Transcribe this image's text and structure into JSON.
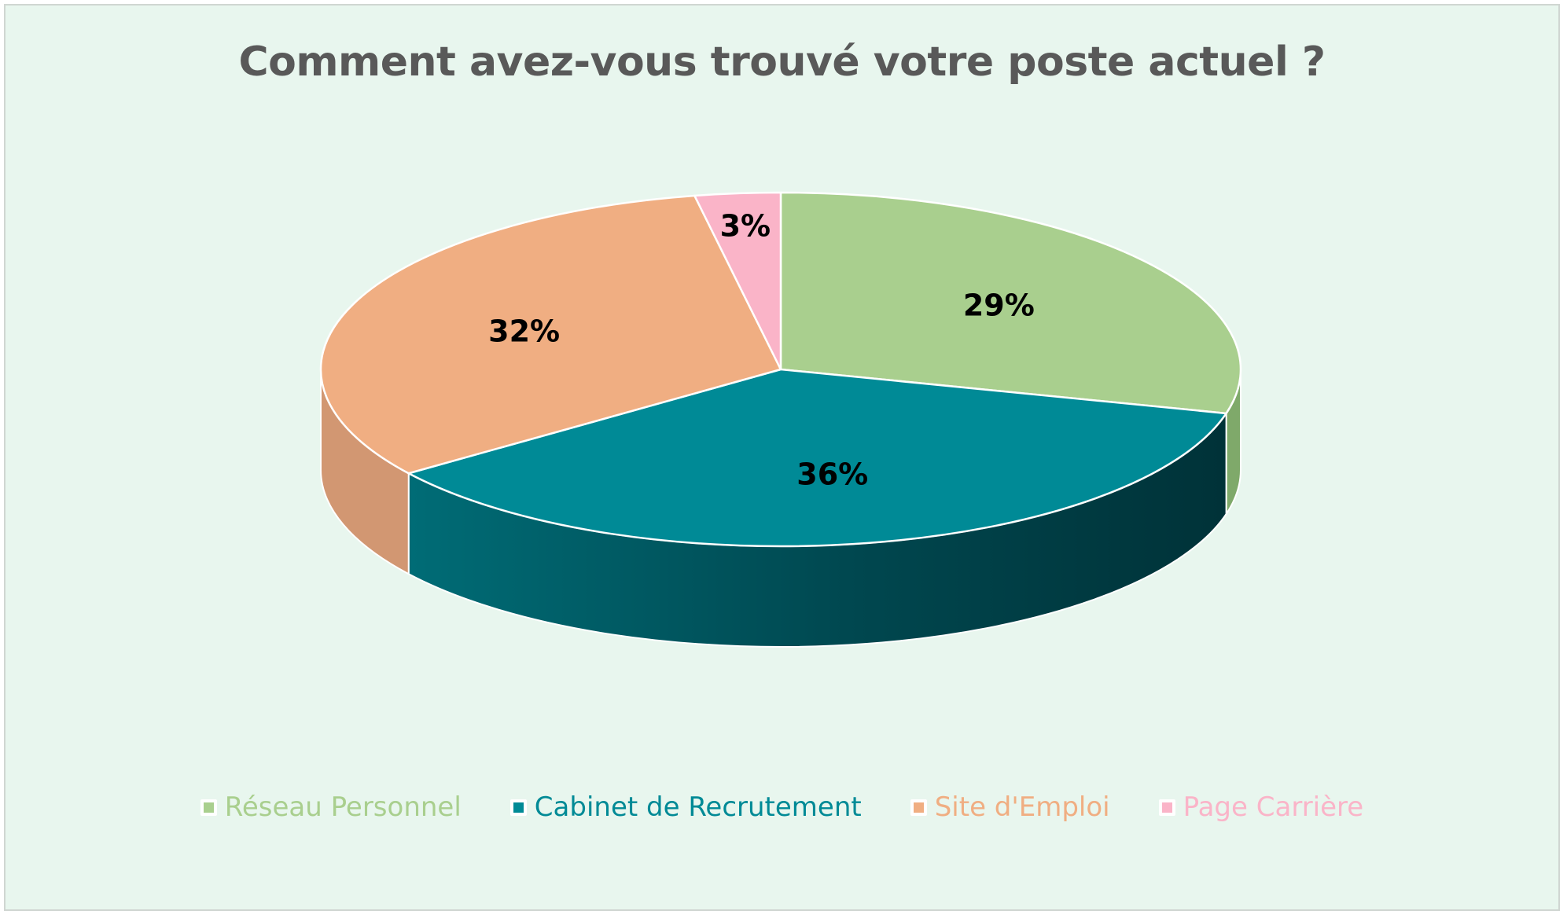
{
  "chart_data": {
    "type": "pie",
    "title": "Comment avez-vous trouvé votre poste actuel ?",
    "categories": [
      "Réseau Personnel",
      "Cabinet de Recrutement",
      "Site d'Emploi",
      "Page Carrière"
    ],
    "values": [
      29,
      36,
      32,
      3
    ],
    "data_labels": [
      "29%",
      "36%",
      "32%",
      "3%"
    ],
    "unit": "%",
    "colors": [
      "#a9cf8e",
      "#008a96",
      "#f0ae82",
      "#fab4c8"
    ],
    "side_colors": [
      "#7fa96a",
      "#00434b",
      "#d29772",
      "#d890a4"
    ],
    "legend_position": "bottom",
    "style": "3d"
  }
}
